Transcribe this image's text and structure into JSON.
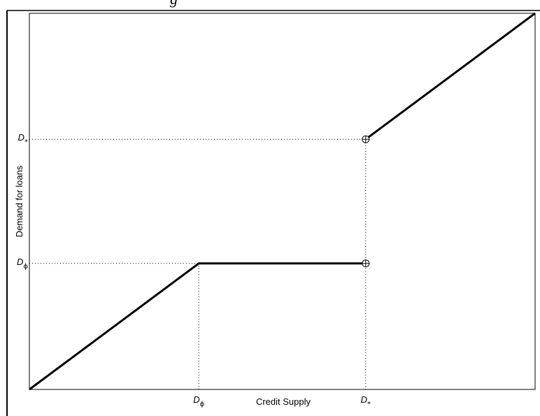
{
  "top_fragment": "g",
  "chart_data": {
    "type": "line",
    "xlabel": "Credit Supply",
    "ylabel": "Demand for loans",
    "xlim": [
      0,
      10
    ],
    "ylim": [
      0,
      10
    ],
    "x_ticks": [
      {
        "value": 3.35,
        "main": "D",
        "sub": "ϕ"
      },
      {
        "value": 6.65,
        "main": "D",
        "sub": "*"
      }
    ],
    "y_ticks": [
      {
        "value": 3.35,
        "main": "D",
        "sub": "ϕ"
      },
      {
        "value": 6.65,
        "main": "D",
        "sub": "*"
      }
    ],
    "series": [
      {
        "points": [
          [
            0,
            0
          ],
          [
            3.35,
            3.35
          ],
          [
            6.65,
            3.35
          ]
        ]
      },
      {
        "points": [
          [
            6.65,
            6.65
          ],
          [
            10,
            10
          ]
        ]
      }
    ],
    "open_markers": [
      [
        6.65,
        3.35
      ],
      [
        6.65,
        6.65
      ]
    ],
    "guides": [
      {
        "from": [
          0,
          6.65
        ],
        "to": [
          6.65,
          6.65
        ]
      },
      {
        "from": [
          6.65,
          0
        ],
        "to": [
          6.65,
          6.65
        ]
      },
      {
        "from": [
          0,
          3.35
        ],
        "to": [
          3.35,
          3.35
        ]
      },
      {
        "from": [
          3.35,
          0
        ],
        "to": [
          3.35,
          3.35
        ]
      }
    ],
    "grid": false,
    "legend": "none"
  }
}
